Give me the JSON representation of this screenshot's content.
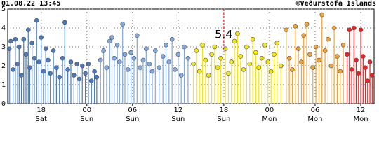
{
  "header": {
    "timestamp": "01.08.22 13:45",
    "credit": "©Veðurstofa Íslands"
  },
  "chart_data": {
    "type": "scatter",
    "stems": true,
    "grid": true,
    "xlim": [
      13.6,
      61.75
    ],
    "ylim": [
      0,
      5
    ],
    "yticks": [
      0,
      1,
      2,
      3,
      4,
      5
    ],
    "xticks": [
      {
        "value": 18,
        "label": "18\nSat"
      },
      {
        "value": 24,
        "label": "00\nSun"
      },
      {
        "value": 30,
        "label": "06\nSun"
      },
      {
        "value": 36,
        "label": "12\nSun"
      },
      {
        "value": 42,
        "label": "18\nSun"
      },
      {
        "value": 48,
        "label": "00\nMon"
      },
      {
        "value": 54,
        "label": "06\nMon"
      },
      {
        "value": 60,
        "label": "12\nMon"
      }
    ],
    "annotation": {
      "text": "5.4",
      "x": 42
    },
    "series": [
      {
        "color": "#4a78b8",
        "x": [
          13.8,
          14.0,
          14.3,
          14.6,
          14.9,
          15.1,
          15.4,
          15.7,
          16.0,
          16.3,
          16.5,
          16.8,
          17.1,
          17.4,
          17.7,
          18.0,
          18.3,
          18.6,
          18.9,
          19.2,
          19.6,
          20.0,
          20.4,
          20.8,
          21.1,
          21.5,
          21.9,
          22.3,
          22.7,
          23.0,
          23.4,
          23.8,
          24.2,
          24.6,
          25.0,
          25.3
        ],
        "values": [
          2.9,
          3.3,
          1.8,
          3.4,
          2.1,
          3.0,
          1.5,
          3.4,
          2.6,
          3.9,
          1.9,
          3.2,
          2.4,
          4.4,
          2.2,
          3.5,
          1.7,
          2.9,
          2.3,
          1.6,
          2.8,
          1.9,
          1.4,
          2.4,
          4.3,
          1.8,
          2.2,
          1.5,
          2.1,
          1.3,
          2.0,
          1.6,
          2.1,
          1.2,
          1.7,
          1.4
        ]
      },
      {
        "color": "#82a8de",
        "x": [
          25.8,
          26.2,
          26.6,
          27.0,
          27.3,
          27.6,
          28.0,
          28.3,
          28.7,
          29.0,
          29.4,
          29.8,
          30.2,
          30.6,
          31.0,
          31.4,
          31.8,
          32.2,
          32.6,
          33.0,
          33.5,
          34.0,
          34.4,
          34.8,
          35.2,
          35.6,
          36.0,
          36.4,
          36.8,
          37.3
        ],
        "values": [
          2.3,
          2.8,
          1.9,
          3.3,
          3.5,
          2.4,
          3.1,
          2.2,
          4.2,
          2.6,
          1.8,
          2.7,
          2.4,
          3.6,
          1.9,
          2.3,
          2.9,
          2.1,
          1.7,
          2.8,
          1.9,
          2.5,
          3.1,
          2.2,
          3.4,
          1.8,
          2.6,
          1.5,
          3.0,
          2.4
        ]
      },
      {
        "color": "#f2e41c",
        "x": [
          38.0,
          38.4,
          38.8,
          39.2,
          39.6,
          40.0,
          40.4,
          40.8,
          41.2,
          41.6,
          42.2,
          42.6,
          43.0,
          43.4,
          43.8,
          44.2,
          44.6,
          45.0,
          45.4,
          45.8,
          46.2,
          46.6,
          47.0,
          47.4,
          47.8,
          48.2,
          48.6,
          49.0,
          49.5
        ],
        "values": [
          2.1,
          2.8,
          1.7,
          3.1,
          2.3,
          1.5,
          2.6,
          3.0,
          1.9,
          2.4,
          2.9,
          1.6,
          2.2,
          3.3,
          3.7,
          2.5,
          1.8,
          3.0,
          2.1,
          3.4,
          2.7,
          1.9,
          2.4,
          3.1,
          2.2,
          1.7,
          2.6,
          3.2,
          2.0
        ]
      },
      {
        "color": "#eea43a",
        "x": [
          50.2,
          50.6,
          51.0,
          51.4,
          51.8,
          52.2,
          52.5,
          52.9,
          53.3,
          53.7,
          54.1,
          54.5,
          54.9,
          55.3,
          55.7,
          56.1,
          56.5,
          56.9,
          57.3,
          57.7
        ],
        "values": [
          3.9,
          2.4,
          1.8,
          4.1,
          2.9,
          2.2,
          3.6,
          4.2,
          2.6,
          1.9,
          3.0,
          2.3,
          4.7,
          2.8,
          3.4,
          2.0,
          4.0,
          2.5,
          1.7,
          3.1
        ]
      },
      {
        "color": "#e52424",
        "x": [
          58.2,
          58.5,
          58.8,
          59.1,
          59.4,
          59.7,
          60.0,
          60.3,
          60.6,
          60.9,
          61.2,
          61.5
        ],
        "values": [
          2.6,
          3.9,
          1.8,
          4.0,
          2.3,
          1.6,
          3.9,
          2.5,
          1.9,
          1.2,
          2.2,
          1.5
        ]
      }
    ]
  }
}
